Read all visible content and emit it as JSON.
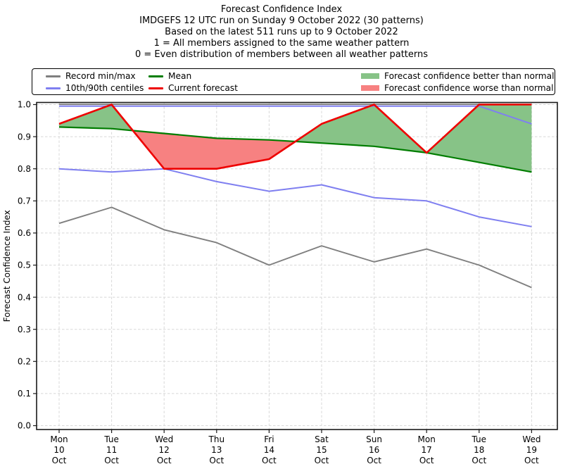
{
  "title": {
    "lines": [
      "Forecast Confidence Index",
      "IMDGEFS 12 UTC run on Sunday 9 October 2022 (30 patterns)",
      "Based on the latest 511 runs up to 9 October 2022",
      "1 = All members assigned to the same weather pattern",
      "0 = Even distribution of members between all weather patterns"
    ]
  },
  "legend": {
    "items": [
      {
        "label": "Record min/max",
        "type": "line",
        "color": "#7f7f7f"
      },
      {
        "label": "10th/90th centiles",
        "type": "line",
        "color": "#7f7ff0"
      },
      {
        "label": "Mean",
        "type": "line",
        "color": "#007d00"
      },
      {
        "label": "Current forecast",
        "type": "line",
        "color": "#ee0000"
      },
      {
        "label": "Forecast confidence better than normal",
        "type": "patch",
        "color": "#87c387"
      },
      {
        "label": "Forecast confidence worse than normal",
        "type": "patch",
        "color": "#f78181"
      }
    ]
  },
  "chart_data": {
    "type": "line",
    "title": "Forecast Confidence Index",
    "ylabel": "Forecast Confidence Index",
    "ylim": [
      0.0,
      1.0
    ],
    "yticks": [
      "0.0",
      "0.1",
      "0.2",
      "0.3",
      "0.4",
      "0.5",
      "0.6",
      "0.7",
      "0.8",
      "0.9",
      "1.0"
    ],
    "grid": true,
    "grid_style": "dashed",
    "legend_position": "top",
    "categories": [
      {
        "day": "Mon",
        "date": "10",
        "month": "Oct"
      },
      {
        "day": "Tue",
        "date": "11",
        "month": "Oct"
      },
      {
        "day": "Wed",
        "date": "12",
        "month": "Oct"
      },
      {
        "day": "Thu",
        "date": "13",
        "month": "Oct"
      },
      {
        "day": "Fri",
        "date": "14",
        "month": "Oct"
      },
      {
        "day": "Sat",
        "date": "15",
        "month": "Oct"
      },
      {
        "day": "Sun",
        "date": "16",
        "month": "Oct"
      },
      {
        "day": "Mon",
        "date": "17",
        "month": "Oct"
      },
      {
        "day": "Tue",
        "date": "18",
        "month": "Oct"
      },
      {
        "day": "Wed",
        "date": "19",
        "month": "Oct"
      }
    ],
    "series": [
      {
        "name": "Record max",
        "color": "#7f7f7f",
        "width": 1.9,
        "values": [
          1.0,
          1.0,
          1.0,
          1.0,
          1.0,
          1.0,
          1.0,
          1.0,
          1.0,
          1.0
        ]
      },
      {
        "name": "Record min",
        "color": "#7f7f7f",
        "width": 1.9,
        "values": [
          0.63,
          0.68,
          0.61,
          0.57,
          0.5,
          0.56,
          0.51,
          0.55,
          0.5,
          0.43
        ]
      },
      {
        "name": "90th centile",
        "color": "#7f7ff0",
        "width": 2.0,
        "values": [
          1.0,
          1.0,
          1.0,
          1.0,
          1.0,
          1.0,
          1.0,
          1.0,
          1.0,
          0.94
        ]
      },
      {
        "name": "10th centile",
        "color": "#7f7ff0",
        "width": 2.0,
        "values": [
          0.8,
          0.79,
          0.8,
          0.76,
          0.73,
          0.75,
          0.71,
          0.7,
          0.65,
          0.62
        ]
      },
      {
        "name": "Mean",
        "color": "#007d00",
        "width": 2.2,
        "values": [
          0.93,
          0.925,
          0.91,
          0.895,
          0.89,
          0.88,
          0.87,
          0.85,
          0.82,
          0.79
        ]
      },
      {
        "name": "Current forecast",
        "color": "#ee0000",
        "width": 2.6,
        "values": [
          0.94,
          1.0,
          0.8,
          0.8,
          0.83,
          0.94,
          1.0,
          0.85,
          1.0,
          1.0
        ]
      }
    ],
    "fills": {
      "between": [
        "Current forecast",
        "Mean"
      ],
      "better_color": "#87c387",
      "worse_color": "#f78181"
    },
    "colors": {
      "grid": "#d8d8d8",
      "spine": "#1a1a1a",
      "tick_text": "#000000"
    }
  }
}
